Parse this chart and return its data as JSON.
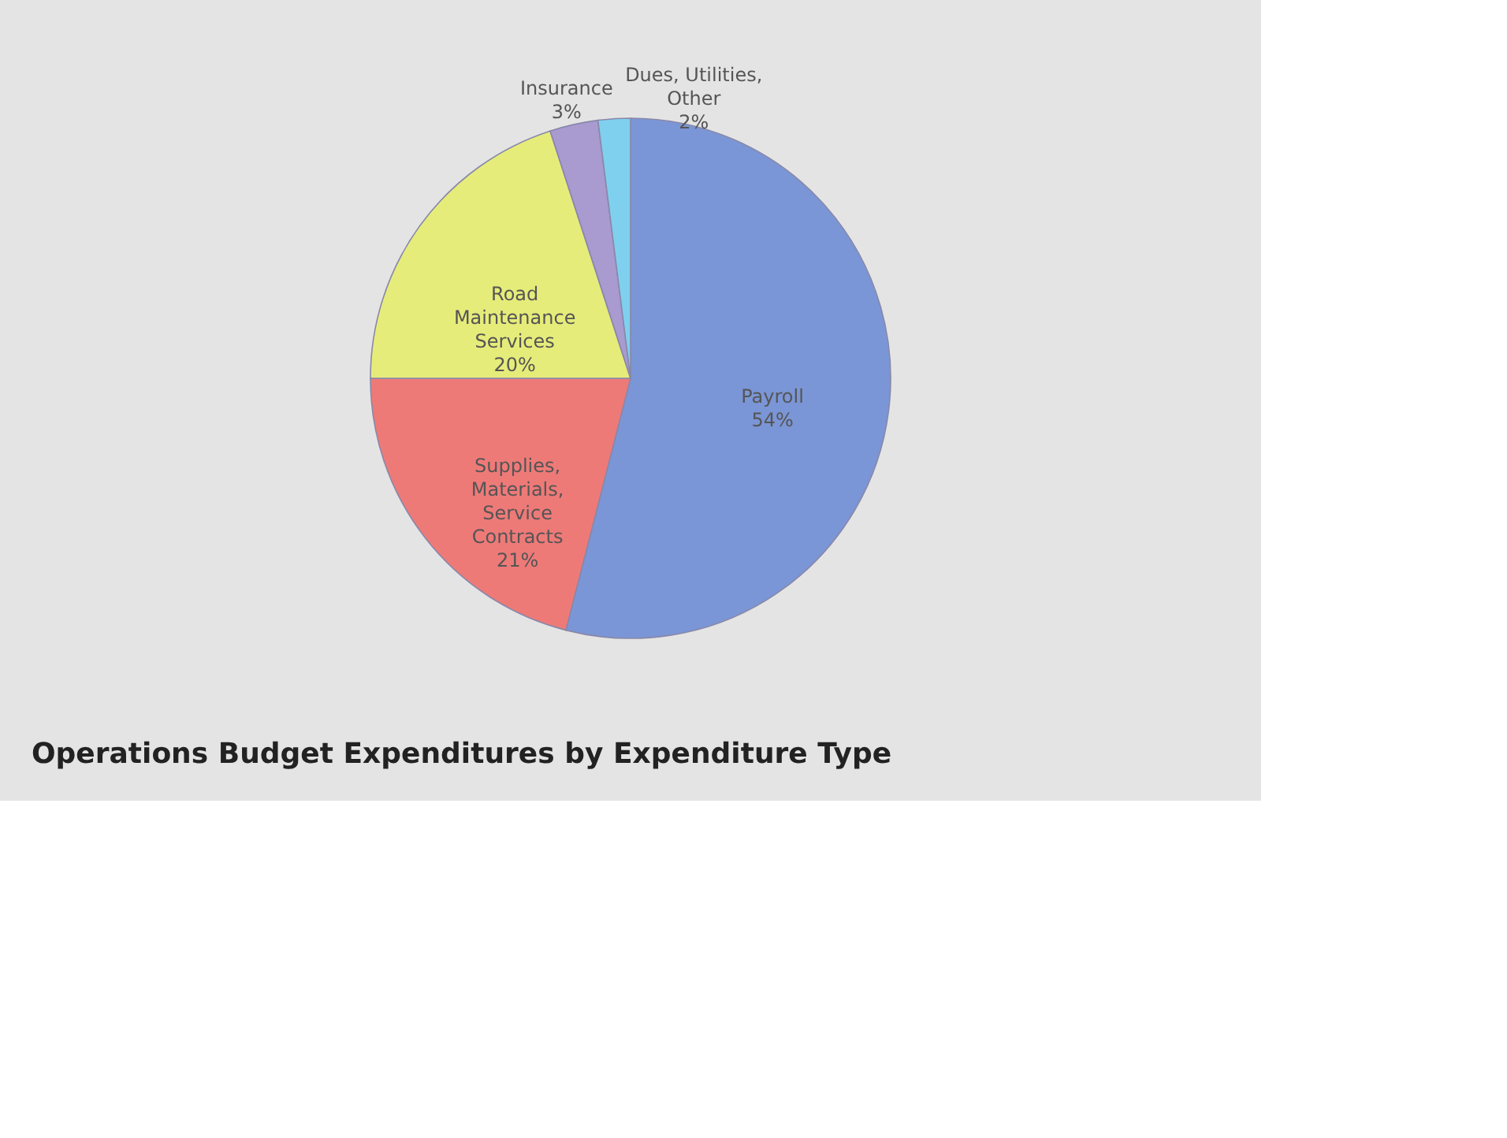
{
  "chart_data": {
    "type": "pie",
    "title": "Operations Budget Expenditures by Expenditure Type",
    "categories": [
      "Payroll",
      "Supplies, Materials, Service Contracts",
      "Road Maintenance Services",
      "Insurance",
      "Dues, Utilities, Other"
    ],
    "values": [
      54,
      21,
      20,
      3,
      2
    ],
    "colors": [
      "#7b96d6",
      "#ee7a78",
      "#e6ec7a",
      "#a99ad0",
      "#7fd0ee"
    ],
    "value_labels": [
      "54%",
      "21%",
      "20%",
      "3%",
      "2%"
    ],
    "legend": false
  }
}
